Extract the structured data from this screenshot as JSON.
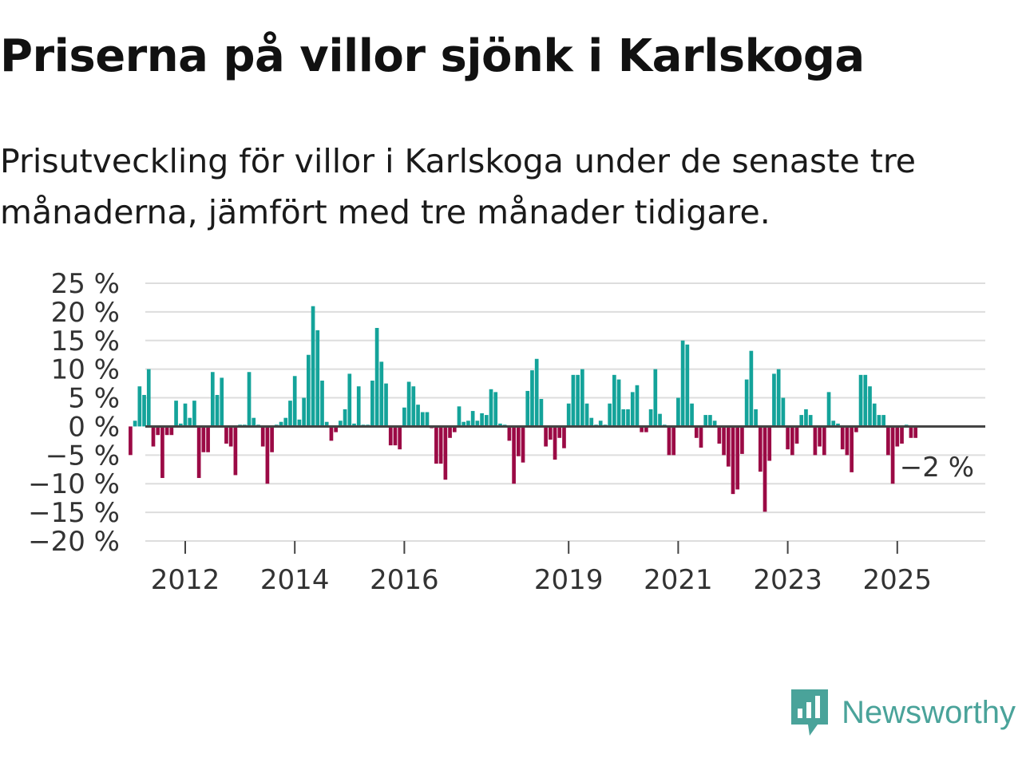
{
  "header": {
    "title": "Priserna på villor sjönk i Karlskoga",
    "subtitle": "Prisutveckling för villor i Karlskoga under de senaste tre månaderna, jämfört med tre månader tidigare."
  },
  "branding": {
    "name": "Newsworthy",
    "icon": "newsworthy-logo-icon"
  },
  "colors": {
    "positive": "#14a39a",
    "negative": "#9b0a45",
    "grid": "#dddddd",
    "zero": "#444444",
    "text": "#333333"
  },
  "chart_data": {
    "type": "bar",
    "title": "Priserna på villor sjönk i Karlskoga",
    "ylabel": "",
    "xlabel": "",
    "ylim": [
      -20,
      25
    ],
    "y_ticks": [
      25,
      20,
      15,
      10,
      5,
      0,
      -5,
      -10,
      -15,
      -20
    ],
    "y_tick_labels": [
      "25 %",
      "20 %",
      "15 %",
      "10 %",
      "5 %",
      "0 %",
      "−5 %",
      "−10 %",
      "−15 %",
      "−20 %"
    ],
    "x_ticks": [
      {
        "label": "2012",
        "x": 2012.0
      },
      {
        "label": "2014",
        "x": 2014.0
      },
      {
        "label": "2016",
        "x": 2016.0
      },
      {
        "label": "2019",
        "x": 2019.0
      },
      {
        "label": "2021",
        "x": 2021.0
      },
      {
        "label": "2023",
        "x": 2023.0
      },
      {
        "label": "2025",
        "x": 2025.0
      }
    ],
    "start": 2011.0,
    "months_per_step": 1,
    "values": [
      -5,
      1,
      7,
      5.5,
      10,
      -3.5,
      -1.5,
      -9,
      -1.5,
      -1.5,
      4.5,
      0.5,
      4,
      1.5,
      4.5,
      -9,
      -4.5,
      -4.5,
      9.5,
      5.5,
      8.5,
      -3,
      -3.5,
      -8.5,
      0.3,
      0.3,
      9.5,
      1.5,
      0.3,
      -3.5,
      -10,
      -4.5,
      0.3,
      0.8,
      1.5,
      4.5,
      8.8,
      1.2,
      5,
      12.5,
      21,
      16.8,
      8,
      0.8,
      -2.5,
      -1,
      1,
      3,
      9.2,
      0.5,
      7,
      0.3,
      0.3,
      8,
      17.2,
      11.3,
      7.5,
      -3.3,
      -3.3,
      -4,
      3.3,
      7.8,
      7,
      3.8,
      2.5,
      2.5,
      -0.3,
      -6.5,
      -6.5,
      -9.3,
      -2,
      -1,
      3.5,
      0.8,
      1,
      2.7,
      1,
      2.3,
      2,
      6.5,
      6,
      0.5,
      0.3,
      -2.5,
      -10,
      -5.2,
      -6.3,
      6.2,
      9.8,
      11.8,
      4.8,
      -3.5,
      -2.3,
      -5.8,
      -2,
      -3.8,
      4,
      9,
      9,
      10,
      4,
      1.5,
      0.3,
      1,
      0.3,
      4,
      9,
      8.2,
      3,
      3,
      6,
      7.2,
      -1,
      -1,
      3,
      10,
      2.2,
      0.3,
      -5,
      -5,
      5,
      15,
      14.3,
      4,
      -2,
      -3.7,
      2,
      2,
      1,
      -3,
      -5,
      -7,
      -11.8,
      -11,
      -4.8,
      8.2,
      13.2,
      3,
      -7.9,
      -14.9,
      -6,
      9.2,
      10,
      5,
      -4,
      -5,
      -3,
      2,
      3,
      2,
      -5,
      -3.5,
      -5,
      6,
      1,
      0.5,
      -4,
      -5,
      -8,
      -1,
      9,
      9,
      7,
      4,
      2,
      2,
      -5,
      -10,
      -3.5,
      -3,
      0.3,
      -2,
      -2
    ],
    "annotation": {
      "text": "−2 %",
      "value": -2,
      "position": "last-bar"
    }
  }
}
